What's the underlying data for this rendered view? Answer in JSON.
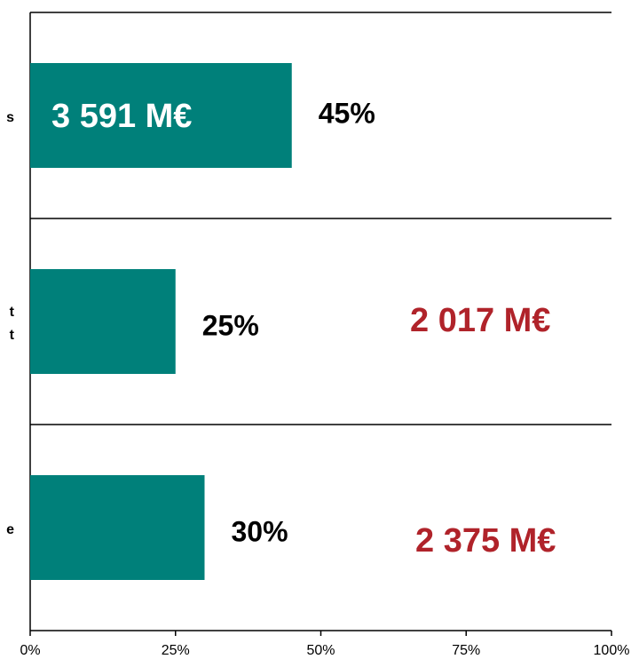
{
  "chart_data": {
    "type": "barh",
    "categories": [
      [
        "s"
      ],
      [
        "t",
        "t"
      ],
      [
        "e"
      ]
    ],
    "values": [
      45,
      25,
      30
    ],
    "value_labels": [
      "45%",
      "25%",
      "30%"
    ],
    "color": "#00807a",
    "annotations": [
      {
        "text": "3 591 M€",
        "color": "#ffffff"
      },
      {
        "text": "2 017 M€",
        "color": "#b0232a"
      },
      {
        "text": "2 375 M€",
        "color": "#b0232a"
      }
    ],
    "xlim": [
      0,
      100
    ],
    "xticks": [
      {
        "value": 0,
        "label": "0%"
      },
      {
        "value": 25,
        "label": "25%"
      },
      {
        "value": 50,
        "label": "50%"
      },
      {
        "value": 75,
        "label": "75%"
      },
      {
        "value": 100,
        "label": "100%"
      }
    ]
  }
}
